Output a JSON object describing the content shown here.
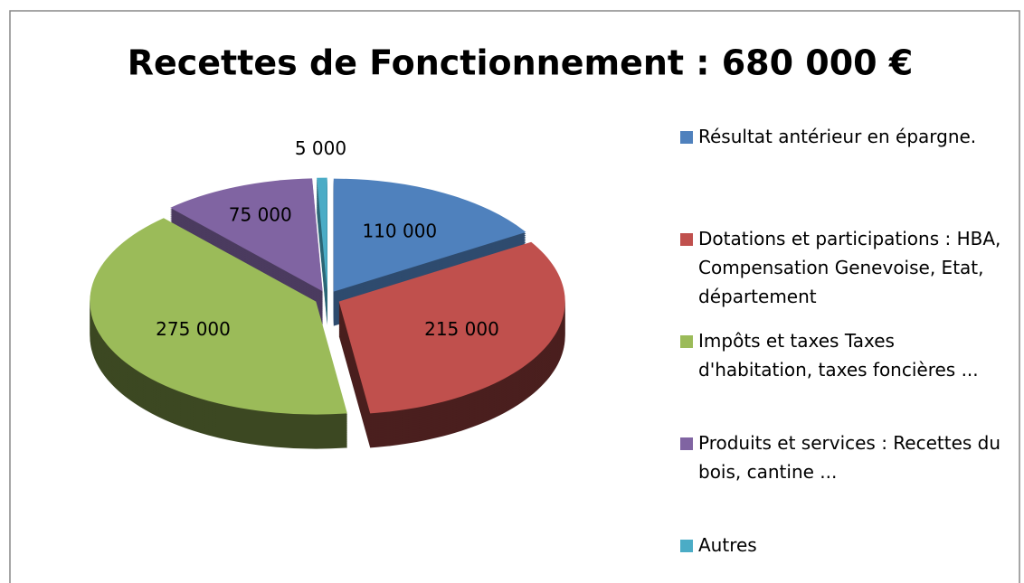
{
  "chart_data": {
    "type": "pie3d",
    "title": "Recettes de Fonctionnement : 680 000 €",
    "categories": [
      "Résultat antérieur en épargne.",
      "Dotations et participations : HBA, Compensation Genevoise, Etat, département",
      "Impôts et taxes Taxes d'habitation, taxes foncières ...",
      "Produits et services : Recettes du bois, cantine ...",
      "Autres"
    ],
    "values": [
      110000,
      215000,
      275000,
      75000,
      5000
    ],
    "value_labels": [
      "110 000",
      "215 000",
      "275 000",
      "75 000",
      "5 000"
    ],
    "colors": [
      "#4f81bd",
      "#c0504d",
      "#9bbb59",
      "#8064a2",
      "#4bacc6"
    ],
    "legend": "right"
  }
}
